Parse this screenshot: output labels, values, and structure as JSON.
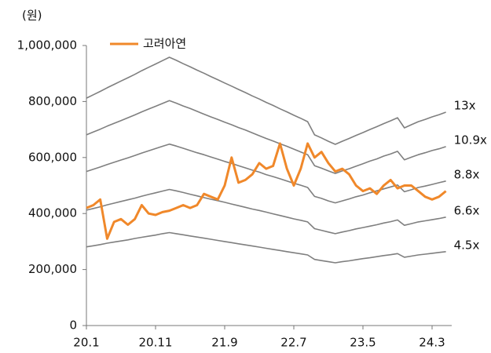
{
  "chart_data": {
    "type": "line",
    "y_axis_label": "(원)",
    "categories": [
      "20.1",
      null,
      null,
      null,
      null,
      null,
      null,
      null,
      null,
      null,
      "20.11",
      null,
      null,
      null,
      null,
      null,
      null,
      null,
      null,
      null,
      "21.9",
      null,
      null,
      null,
      null,
      null,
      null,
      null,
      null,
      null,
      "22.7",
      null,
      null,
      null,
      null,
      null,
      null,
      null,
      null,
      null,
      "23.5",
      null,
      null,
      null,
      null,
      null,
      null,
      null,
      null,
      null,
      "24.3",
      null,
      null
    ],
    "series": [
      {
        "name": "고려아연",
        "color": "#f0882a",
        "legend": true,
        "values": [
          420000,
          430000,
          450000,
          310000,
          370000,
          380000,
          360000,
          380000,
          430000,
          400000,
          395000,
          405000,
          410000,
          420000,
          430000,
          420000,
          430000,
          470000,
          460000,
          450000,
          500000,
          600000,
          510000,
          520000,
          540000,
          580000,
          560000,
          570000,
          650000,
          560000,
          500000,
          560000,
          650000,
          600000,
          620000,
          580000,
          550000,
          560000,
          540000,
          500000,
          480000,
          490000,
          470000,
          500000,
          520000,
          490000,
          500000,
          500000,
          480000,
          460000,
          450000,
          460000,
          480000
        ]
      },
      {
        "name": "13x",
        "color": "#7f7f7f",
        "legend": false,
        "values": [
          812000,
          824000,
          836000,
          849000,
          861000,
          873000,
          885000,
          897000,
          910000,
          922000,
          934000,
          946000,
          958000,
          947000,
          935000,
          924000,
          912000,
          901000,
          889000,
          878000,
          866000,
          855000,
          843000,
          832000,
          820000,
          809000,
          797000,
          786000,
          774000,
          763000,
          751000,
          740000,
          728000,
          681000,
          670000,
          658000,
          647000,
          658000,
          668000,
          679000,
          689000,
          700000,
          710000,
          721000,
          731000,
          742000,
          706000,
          717000,
          728000,
          736000,
          745000,
          753000,
          762000
        ]
      },
      {
        "name": "10.9x",
        "color": "#7f7f7f",
        "legend": false,
        "values": [
          681000,
          691000,
          701000,
          712000,
          722000,
          732000,
          742000,
          752000,
          763000,
          773000,
          783000,
          793000,
          803000,
          794000,
          784000,
          775000,
          765000,
          755000,
          745000,
          736000,
          726000,
          717000,
          707000,
          698000,
          688000,
          678000,
          668000,
          659000,
          649000,
          640000,
          630000,
          620000,
          610000,
          571000,
          562000,
          552000,
          543000,
          552000,
          560000,
          569000,
          578000,
          587000,
          595000,
          605000,
          613000,
          622000,
          592000,
          601000,
          610000,
          617000,
          625000,
          631000,
          639000
        ]
      },
      {
        "name": "8.8x",
        "color": "#7f7f7f",
        "legend": false,
        "values": [
          550000,
          558000,
          566000,
          575000,
          583000,
          591000,
          599000,
          607000,
          616000,
          624000,
          632000,
          640000,
          648000,
          641000,
          633000,
          625000,
          617000,
          610000,
          602000,
          594000,
          586000,
          579000,
          571000,
          563000,
          555000,
          548000,
          539000,
          532000,
          524000,
          516000,
          508000,
          501000,
          493000,
          461000,
          454000,
          445000,
          438000,
          445000,
          452000,
          460000,
          466000,
          474000,
          481000,
          488000,
          495000,
          502000,
          478000,
          485000,
          493000,
          498000,
          504000,
          510000,
          516000
        ]
      },
      {
        "name": "6.6x",
        "color": "#7f7f7f",
        "legend": false,
        "values": [
          412000,
          418000,
          424000,
          431000,
          437000,
          443000,
          449000,
          455000,
          462000,
          468000,
          474000,
          480000,
          486000,
          481000,
          475000,
          469000,
          463000,
          457000,
          451000,
          446000,
          440000,
          434000,
          428000,
          422000,
          416000,
          411000,
          405000,
          399000,
          393000,
          387000,
          381000,
          376000,
          370000,
          346000,
          340000,
          334000,
          328000,
          334000,
          339000,
          345000,
          350000,
          355000,
          360000,
          366000,
          371000,
          377000,
          358000,
          364000,
          370000,
          374000,
          378000,
          382000,
          387000
        ]
      },
      {
        "name": "4.5x",
        "color": "#7f7f7f",
        "legend": false,
        "values": [
          281000,
          285000,
          289000,
          294000,
          298000,
          302000,
          306000,
          311000,
          315000,
          319000,
          323000,
          328000,
          332000,
          328000,
          324000,
          320000,
          316000,
          312000,
          308000,
          304000,
          300000,
          296000,
          292000,
          288000,
          284000,
          280000,
          276000,
          272000,
          268000,
          264000,
          260000,
          256000,
          252000,
          236000,
          232000,
          228000,
          224000,
          228000,
          231000,
          235000,
          239000,
          242000,
          246000,
          250000,
          253000,
          257000,
          244000,
          248000,
          252000,
          255000,
          258000,
          261000,
          264000
        ]
      }
    ],
    "ylim": [
      0,
      1000000
    ],
    "yticks": [
      0,
      {
        "value": 200000,
        "label": "200,000"
      },
      {
        "value": 400000,
        "label": "400,000"
      },
      {
        "value": 600000,
        "label": "600,000"
      },
      {
        "value": 800000,
        "label": "800,000"
      },
      {
        "value": 1000000,
        "label": "1,000,000"
      }
    ],
    "grid": false
  }
}
